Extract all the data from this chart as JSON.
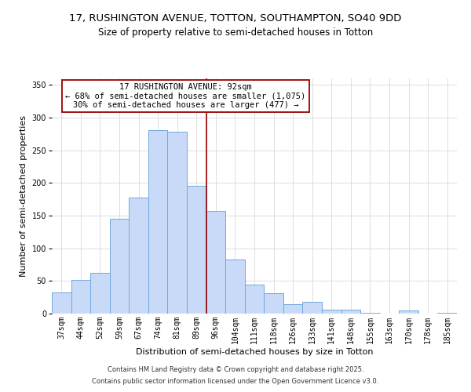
{
  "title": "17, RUSHINGTON AVENUE, TOTTON, SOUTHAMPTON, SO40 9DD",
  "subtitle": "Size of property relative to semi-detached houses in Totton",
  "xlabel": "Distribution of semi-detached houses by size in Totton",
  "ylabel": "Number of semi-detached properties",
  "bar_labels": [
    "37sqm",
    "44sqm",
    "52sqm",
    "59sqm",
    "67sqm",
    "74sqm",
    "81sqm",
    "89sqm",
    "96sqm",
    "104sqm",
    "111sqm",
    "118sqm",
    "126sqm",
    "133sqm",
    "141sqm",
    "148sqm",
    "155sqm",
    "163sqm",
    "170sqm",
    "178sqm",
    "185sqm"
  ],
  "bar_values": [
    33,
    52,
    62,
    145,
    178,
    281,
    278,
    196,
    157,
    83,
    45,
    31,
    15,
    18,
    6,
    6,
    1,
    0,
    5,
    0,
    1
  ],
  "bar_color": "#c9daf8",
  "bar_edge_color": "#6fa8dc",
  "annotation_title": "17 RUSHINGTON AVENUE: 92sqm",
  "annotation_line1": "← 68% of semi-detached houses are smaller (1,075)",
  "annotation_line2": "30% of semi-detached houses are larger (477) →",
  "vline_index": 7.5,
  "vline_color": "#990000",
  "annotation_box_edge": "#990000",
  "ylim": [
    0,
    360
  ],
  "yticks": [
    0,
    50,
    100,
    150,
    200,
    250,
    300,
    350
  ],
  "footnote1": "Contains HM Land Registry data © Crown copyright and database right 2025.",
  "footnote2": "Contains public sector information licensed under the Open Government Licence v3.0.",
  "bg_color": "#ffffff",
  "grid_color": "#dddddd",
  "title_fontsize": 9.5,
  "subtitle_fontsize": 8.5,
  "axis_label_fontsize": 8,
  "tick_fontsize": 7,
  "annotation_fontsize": 7.5,
  "footnote_fontsize": 6
}
